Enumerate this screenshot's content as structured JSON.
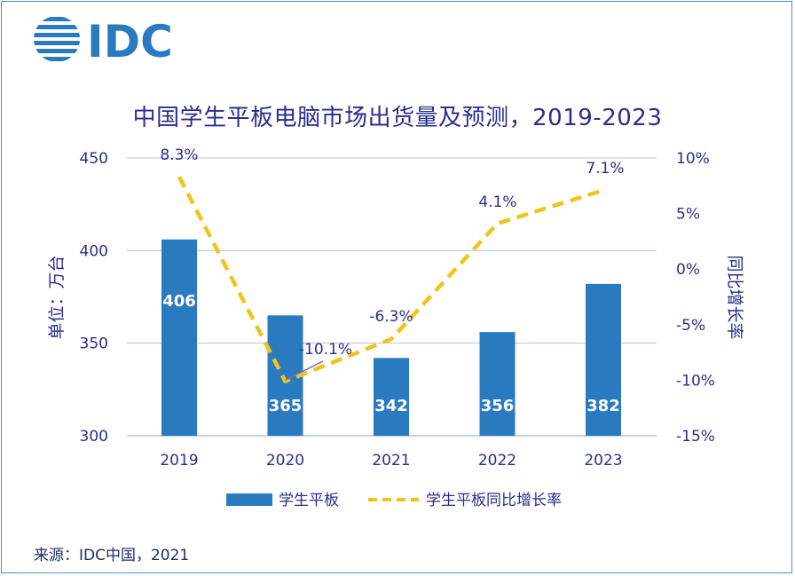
{
  "logo": {
    "text": "IDC"
  },
  "chart_data": {
    "type": "bar",
    "title": "中国学生平板电脑市场出货量及预测，2019-2023",
    "categories": [
      "2019",
      "2020",
      "2021",
      "2022",
      "2023"
    ],
    "series": [
      {
        "name": "学生平板",
        "type": "bar",
        "axis": "left",
        "values": [
          406,
          365,
          342,
          356,
          382
        ],
        "color": "#2a7ac0"
      },
      {
        "name": "学生平板同比增长率",
        "type": "line",
        "style": "dashed",
        "axis": "right",
        "values": [
          8.3,
          -10.1,
          -6.3,
          4.1,
          7.1
        ],
        "labels": [
          "8.3%",
          "-10.1%",
          "-6.3%",
          "4.1%",
          "7.1%"
        ],
        "color": "#f0c419"
      }
    ],
    "y_left": {
      "label": "单位：万台",
      "range": [
        300,
        450
      ],
      "ticks": [
        "300",
        "350",
        "400",
        "450"
      ],
      "tick_values": [
        300,
        350,
        400,
        450
      ]
    },
    "y_right": {
      "label": "同比增长率",
      "range": [
        -15,
        10
      ],
      "ticks": [
        "-15%",
        "-10%",
        "-5%",
        "0%",
        "5%",
        "10%"
      ],
      "tick_values": [
        -15,
        -10,
        -5,
        0,
        5,
        10
      ]
    },
    "grid": true,
    "legend": "bottom"
  },
  "source": "来源：IDC中国，2021",
  "colors": {
    "frame": "#4a90c8",
    "text": "#2b2e8c",
    "grid": "#b8c2e8",
    "bar": "#2a7ac0",
    "line": "#f0c419"
  }
}
